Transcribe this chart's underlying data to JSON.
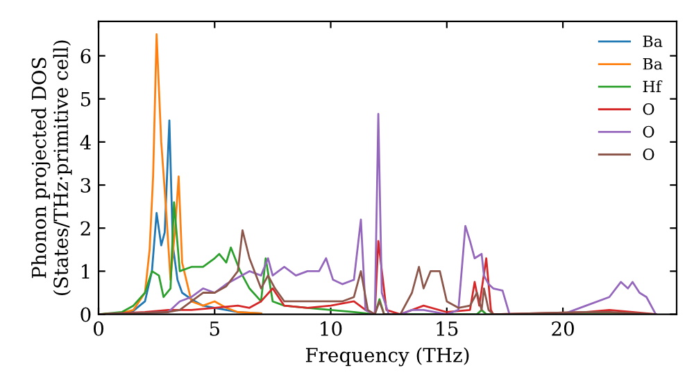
{
  "chart_data": {
    "type": "line",
    "xlabel": "Frequency (THz)",
    "ylabel": "Phonon projected DOS\n(States/THz·primitive cell)",
    "xlim": [
      0,
      24.9
    ],
    "ylim": [
      0,
      6.8
    ],
    "xticks": [
      0,
      5,
      10,
      15,
      20
    ],
    "yticks": [
      0,
      1,
      2,
      3,
      4,
      5,
      6
    ],
    "grid": false,
    "legend": "top right",
    "marker": "none",
    "line_style": "solid",
    "series": [
      {
        "name": "Ba",
        "color": "#1f77b4",
        "x": [
          0,
          1,
          1.5,
          2,
          2.3,
          2.5,
          2.7,
          2.85,
          3.05,
          3.2,
          3.4,
          3.6,
          4,
          4.5,
          5,
          5.5,
          6,
          7
        ],
        "values": [
          0,
          0.02,
          0.08,
          0.3,
          1.0,
          2.35,
          1.6,
          1.9,
          4.5,
          1.6,
          0.8,
          0.5,
          0.35,
          0.2,
          0.15,
          0.1,
          0.05,
          0.02
        ]
      },
      {
        "name": "Ba",
        "color": "#ff7f0e",
        "x": [
          0,
          1,
          1.5,
          2,
          2.2,
          2.35,
          2.5,
          2.7,
          2.9,
          3.1,
          3.3,
          3.45,
          3.6,
          4,
          4.5,
          5,
          5.5,
          6,
          7
        ],
        "values": [
          0,
          0.03,
          0.1,
          0.5,
          1.5,
          3.2,
          6.5,
          4.0,
          2.5,
          0.8,
          2.0,
          3.2,
          1.2,
          0.3,
          0.2,
          0.3,
          0.15,
          0.05,
          0.02
        ]
      },
      {
        "name": "Hf",
        "color": "#2ca02c",
        "x": [
          0,
          1,
          1.5,
          2,
          2.3,
          2.6,
          2.8,
          3.1,
          3.25,
          3.5,
          4,
          4.5,
          5,
          5.2,
          5.5,
          5.7,
          6.1,
          6.5,
          7,
          7.2,
          7.5,
          8,
          9,
          10,
          11,
          11.9,
          12.1,
          12.3,
          13,
          16.3,
          16.5,
          16.7,
          17,
          24
        ],
        "values": [
          0,
          0.05,
          0.2,
          0.5,
          1.0,
          0.9,
          0.4,
          0.6,
          2.6,
          1.0,
          1.1,
          1.1,
          1.3,
          1.4,
          1.2,
          1.55,
          1.0,
          0.6,
          0.3,
          1.3,
          0.3,
          0.2,
          0.15,
          0.1,
          0.05,
          0,
          0.35,
          0,
          0,
          0,
          0.1,
          0,
          0,
          0
        ]
      },
      {
        "name": "O",
        "color": "#d62728",
        "x": [
          0,
          2,
          3,
          4,
          5,
          6,
          6.5,
          7,
          7.5,
          8,
          9,
          10,
          11,
          11.5,
          11.9,
          12.05,
          12.4,
          13,
          14,
          15,
          16,
          16.2,
          16.4,
          16.7,
          16.9,
          17,
          21,
          22,
          23,
          24
        ],
        "values": [
          0,
          0.05,
          0.1,
          0.1,
          0.15,
          0.2,
          0.15,
          0.3,
          0.6,
          0.2,
          0.15,
          0.2,
          0.3,
          0.1,
          0,
          1.7,
          0.1,
          0,
          0.2,
          0.05,
          0.1,
          0.75,
          0.2,
          1.3,
          0.1,
          0,
          0.05,
          0.1,
          0.05,
          0
        ]
      },
      {
        "name": "O",
        "color": "#9467bd",
        "x": [
          0,
          3,
          3.5,
          4,
          4.5,
          5,
          5.5,
          6,
          6.5,
          7,
          7.3,
          7.5,
          8,
          8.5,
          9,
          9.5,
          9.8,
          10.1,
          10.5,
          11,
          11.3,
          11.5,
          11.9,
          12.05,
          12.2,
          12.5,
          13,
          13.5,
          14,
          15,
          15.5,
          15.8,
          16,
          16.2,
          16.5,
          16.6,
          16.8,
          17,
          17.4,
          17.7,
          20,
          21,
          22,
          22.5,
          22.8,
          23,
          23.3,
          23.6,
          23.9,
          24
        ],
        "values": [
          0,
          0.05,
          0.3,
          0.4,
          0.6,
          0.5,
          0.7,
          0.85,
          1.0,
          0.9,
          1.3,
          0.9,
          1.1,
          0.9,
          1.0,
          1.0,
          1.3,
          0.8,
          0.7,
          0.8,
          2.2,
          0.1,
          0,
          4.65,
          0.5,
          0,
          0,
          0.1,
          0.1,
          0,
          0.1,
          2.05,
          1.7,
          1.3,
          1.4,
          0.9,
          0.7,
          0.6,
          0.55,
          0,
          0,
          0.2,
          0.4,
          0.75,
          0.6,
          0.75,
          0.5,
          0.4,
          0.1,
          0
        ]
      },
      {
        "name": "O",
        "color": "#8c564b",
        "x": [
          0,
          3,
          3.5,
          4,
          4.5,
          5,
          5.5,
          6,
          6.2,
          6.5,
          7,
          7.3,
          7.6,
          8,
          9,
          10,
          10.5,
          11,
          11.3,
          11.6,
          11.9,
          12.1,
          12.3,
          13,
          13.5,
          13.8,
          14,
          14.3,
          14.7,
          15,
          15.5,
          16,
          16.3,
          16.5,
          16.6,
          16.8,
          17,
          21,
          22,
          24
        ],
        "values": [
          0,
          0.05,
          0.1,
          0.3,
          0.5,
          0.5,
          0.65,
          1.0,
          1.95,
          1.3,
          0.6,
          0.9,
          0.6,
          0.3,
          0.3,
          0.3,
          0.3,
          0.4,
          1.0,
          0.1,
          0,
          0.3,
          0,
          0,
          0.5,
          1.1,
          0.6,
          1.0,
          1.0,
          0.3,
          0.15,
          0.2,
          0.5,
          0.1,
          0.6,
          0.1,
          0,
          0.05,
          0.05,
          0
        ]
      }
    ]
  }
}
